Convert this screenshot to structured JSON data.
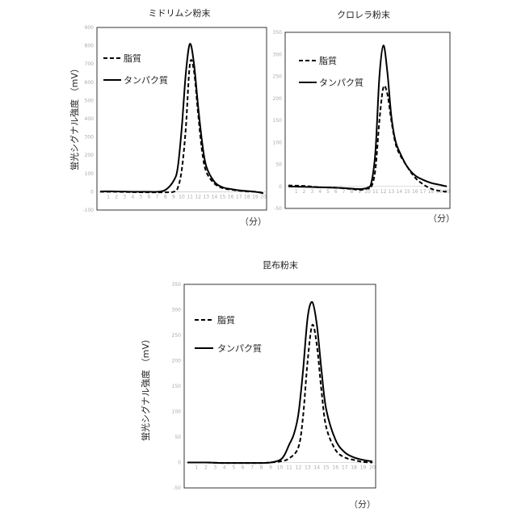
{
  "y_axis_label": "蛍光シグナル強度 （mV）",
  "x_unit": "（分）",
  "legend": {
    "lipid": "脂質",
    "protein": "タンパク質"
  },
  "line_color": "#000000",
  "chart_data": [
    {
      "type": "line",
      "title": "ミドリムシ粉末",
      "ylim": [
        -100,
        900
      ],
      "yticks": [
        -100,
        0,
        100,
        200,
        300,
        400,
        500,
        600,
        700,
        800,
        900
      ],
      "xlim": [
        0,
        20
      ],
      "xticks": [
        1,
        2,
        3,
        4,
        5,
        6,
        7,
        8,
        9,
        10,
        11,
        12,
        13,
        14,
        15,
        16,
        17,
        18,
        19,
        20
      ],
      "series": [
        {
          "name": "脂質",
          "style": "dashed",
          "x": [
            0,
            2,
            4,
            6,
            8,
            9,
            9.5,
            10,
            10.5,
            11,
            11.5,
            12,
            12.5,
            13,
            14,
            15,
            16,
            17,
            18,
            19,
            20
          ],
          "y": [
            0,
            0,
            -2,
            -3,
            -3,
            0,
            20,
            120,
            350,
            700,
            660,
            430,
            220,
            110,
            45,
            20,
            12,
            6,
            2,
            0,
            -5
          ]
        },
        {
          "name": "タンパク質",
          "style": "solid",
          "x": [
            0,
            2,
            4,
            6,
            7,
            8,
            9,
            9.5,
            10,
            10.5,
            11,
            11.5,
            12,
            12.5,
            13,
            14,
            15,
            16,
            17,
            18,
            19,
            20
          ],
          "y": [
            2,
            2,
            0,
            0,
            0,
            10,
            60,
            130,
            350,
            650,
            810,
            700,
            470,
            270,
            140,
            55,
            25,
            15,
            8,
            4,
            0,
            -8
          ]
        }
      ]
    },
    {
      "type": "line",
      "title": "クロレラ粉末",
      "ylim": [
        -50,
        350
      ],
      "yticks": [
        -50,
        0,
        50,
        100,
        150,
        200,
        250,
        300,
        350
      ],
      "xlim": [
        0,
        20
      ],
      "xticks": [
        1,
        2,
        3,
        4,
        5,
        6,
        7,
        8,
        9,
        10,
        11,
        12,
        13,
        14,
        15,
        16,
        17,
        18,
        19,
        20
      ],
      "series": [
        {
          "name": "脂質",
          "style": "dashed",
          "x": [
            0,
            2,
            4,
            6,
            8,
            9,
            10,
            10.5,
            11,
            11.5,
            12,
            12.5,
            13,
            13.5,
            14,
            15,
            16,
            17,
            18,
            19,
            20
          ],
          "y": [
            2,
            1,
            -2,
            -3,
            -6,
            -8,
            -5,
            0,
            40,
            150,
            225,
            210,
            150,
            100,
            75,
            45,
            20,
            5,
            -5,
            -10,
            -12
          ]
        },
        {
          "name": "タンパク質",
          "style": "solid",
          "x": [
            0,
            2,
            4,
            6,
            8,
            9,
            10,
            10.5,
            11,
            11.5,
            12,
            12.5,
            13,
            13.5,
            14,
            15,
            16,
            17,
            18,
            19,
            20
          ],
          "y": [
            0,
            -1,
            -2,
            -3,
            -5,
            -6,
            -3,
            10,
            80,
            250,
            320,
            260,
            160,
            105,
            80,
            45,
            25,
            15,
            8,
            4,
            0
          ]
        }
      ]
    },
    {
      "type": "line",
      "title": "昆布粉末",
      "ylim": [
        -50,
        350
      ],
      "yticks": [
        -50,
        0,
        50,
        100,
        150,
        200,
        250,
        300,
        350
      ],
      "xlim": [
        0,
        20
      ],
      "xticks": [
        1,
        2,
        3,
        4,
        5,
        6,
        7,
        8,
        9,
        10,
        11,
        12,
        13,
        14,
        15,
        16,
        17,
        18,
        19,
        20
      ],
      "series": [
        {
          "name": "脂質",
          "style": "dashed",
          "x": [
            0,
            2,
            4,
            6,
            8,
            9,
            10,
            11,
            12,
            12.5,
            13,
            13.5,
            14,
            14.5,
            15,
            16,
            17,
            18,
            19,
            20
          ],
          "y": [
            0,
            0,
            -1,
            -1,
            -1,
            0,
            2,
            8,
            30,
            90,
            200,
            270,
            230,
            140,
            70,
            25,
            10,
            5,
            1,
            0
          ]
        },
        {
          "name": "タンパク質",
          "style": "solid",
          "x": [
            0,
            2,
            4,
            6,
            8,
            9,
            10,
            10.5,
            11,
            11.5,
            12,
            12.5,
            13,
            13.5,
            14,
            14.5,
            15,
            16,
            17,
            18,
            19,
            20
          ],
          "y": [
            0,
            0,
            -1,
            -1,
            -1,
            0,
            5,
            15,
            35,
            55,
            95,
            180,
            285,
            315,
            270,
            180,
            105,
            45,
            20,
            10,
            5,
            2
          ]
        }
      ]
    }
  ]
}
